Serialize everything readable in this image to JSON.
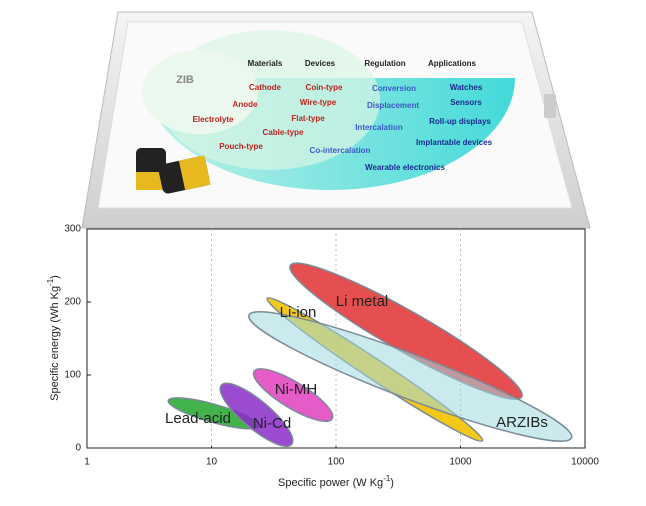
{
  "diagram": {
    "center": "ZIB",
    "headers": [
      "Materials",
      "Devices",
      "Regulation",
      "Applications"
    ],
    "materials": [
      "Cathode",
      "Anode",
      "Electrolyte"
    ],
    "devices": [
      "Coin-type",
      "Wire-type",
      "Flat-type",
      "Cable-type",
      "Pouch-type"
    ],
    "regulation": [
      "Conversion",
      "Displacement",
      "Intercalation",
      "Co-intercalation"
    ],
    "applications": [
      "Watches",
      "Sensors",
      "Roll-up displays",
      "Implantable devices",
      "Wearable electronics"
    ]
  },
  "chart_data": {
    "type": "region",
    "xlabel": "Specific power (W Kg",
    "xlabel_sup": "-1",
    "xlabel_end": ")",
    "ylabel": "Specific energy (Wh Kg",
    "ylabel_sup": "-1",
    "ylabel_end": ")",
    "xscale": "log",
    "xlim": [
      1,
      10000
    ],
    "xticks": [
      1,
      10,
      100,
      1000,
      10000
    ],
    "ylim": [
      0,
      300
    ],
    "yticks": [
      0,
      100,
      200,
      300
    ],
    "series": [
      {
        "name": "Li-ion",
        "color": "#f2c200",
        "power": [
          28,
          1500
        ],
        "energy": [
          10,
          205
        ]
      },
      {
        "name": "Li metal",
        "color": "#e03030",
        "power": [
          43,
          3100
        ],
        "energy": [
          70,
          250
        ]
      },
      {
        "name": "ARZIBs",
        "color": "#9fd8e0",
        "power": [
          20,
          7800
        ],
        "energy": [
          14,
          182
        ]
      },
      {
        "name": "Lead-acid",
        "color": "#2eaa3a",
        "power": [
          4.5,
          24
        ],
        "energy": [
          30,
          65
        ]
      },
      {
        "name": "Ni-MH",
        "color": "#e040c0",
        "power": [
          22,
          93
        ],
        "energy": [
          40,
          105
        ]
      },
      {
        "name": "Ni-Cd",
        "color": "#8a2bc8",
        "power": [
          12,
          44
        ],
        "energy": [
          5,
          86
        ]
      }
    ]
  }
}
